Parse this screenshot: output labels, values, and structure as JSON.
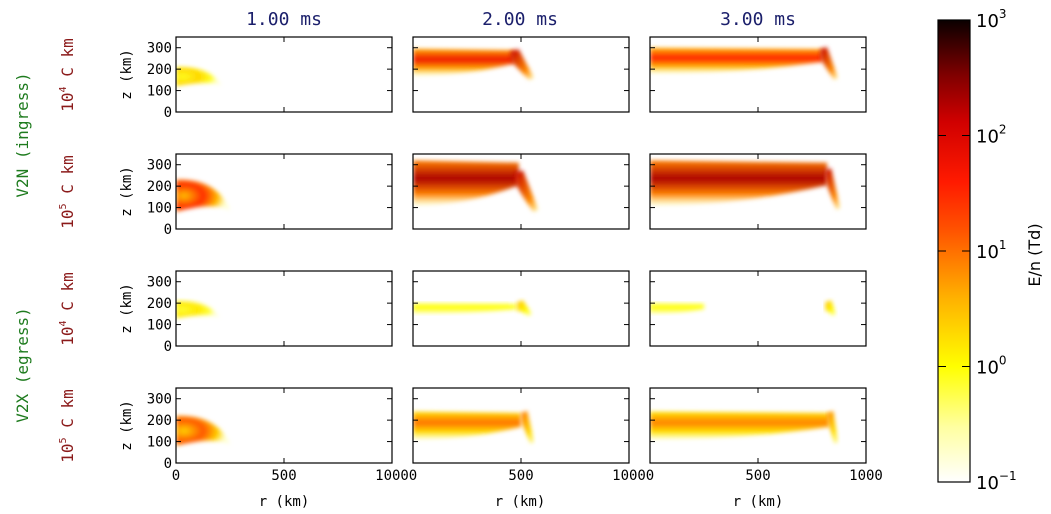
{
  "columns": [
    "1.00 ms",
    "2.00 ms",
    "3.00 ms"
  ],
  "group_labels": [
    "V2N (ingress)",
    "V2X (egress)"
  ],
  "row_labels": [
    {
      "base": "10",
      "exp": "4",
      "suffix": " C km"
    },
    {
      "base": "10",
      "exp": "5",
      "suffix": " C km"
    },
    {
      "base": "10",
      "exp": "4",
      "suffix": " C km"
    },
    {
      "base": "10",
      "exp": "5",
      "suffix": " C km"
    }
  ],
  "colors": {
    "column_title": "#1b1f6b",
    "row_label": "#8b1a1a",
    "group_label": "#1e7b1e"
  },
  "colorbar": {
    "label": "E/n (Td)",
    "scale": "log",
    "colormap": "hot_r",
    "ticks": [
      {
        "base": "10",
        "exp": "3",
        "value": 1000
      },
      {
        "base": "10",
        "exp": "2",
        "value": 100
      },
      {
        "base": "10",
        "exp": "1",
        "value": 10
      },
      {
        "base": "10",
        "exp": "0",
        "value": 1
      },
      {
        "base": "10",
        "exp": "−1",
        "value": 0.1
      }
    ]
  },
  "chart_data": {
    "type": "heatmap",
    "layout": "4 rows x 3 columns of panels",
    "xlabel": "r (km)",
    "ylabel": "z (km)",
    "xlim": [
      0,
      1000
    ],
    "ylim": [
      0,
      350
    ],
    "xticks": [
      0,
      500,
      1000
    ],
    "xtick_labels": [
      "0",
      "500",
      "1000"
    ],
    "yticks": [
      0,
      100,
      200,
      300
    ],
    "ytick_labels": [
      "0",
      "100",
      "200",
      "300"
    ],
    "value_label": "E/n (Td)",
    "value_range": [
      0.1,
      1000
    ],
    "panels": [
      {
        "row": 0,
        "col": 0,
        "regions": [
          {
            "kind": "arc",
            "r_max": 210,
            "z_center": 165,
            "half_thickness": 45,
            "peak_en": 2
          }
        ]
      },
      {
        "row": 0,
        "col": 1,
        "regions": [
          {
            "kind": "band",
            "r_start": 0,
            "r_end": 470,
            "z_low": 170,
            "z_high": 295,
            "peak_en": 60
          },
          {
            "kind": "tip",
            "r_at": 480,
            "z_at": 270,
            "r_end": 560,
            "z_end": 160,
            "peak_en": 150
          }
        ]
      },
      {
        "row": 0,
        "col": 2,
        "regions": [
          {
            "kind": "band",
            "r_start": 0,
            "r_end": 800,
            "z_low": 180,
            "z_high": 300,
            "peak_en": 40
          },
          {
            "kind": "tip",
            "r_at": 810,
            "z_at": 280,
            "r_end": 870,
            "z_end": 160,
            "peak_en": 150
          }
        ]
      },
      {
        "row": 1,
        "col": 0,
        "regions": [
          {
            "kind": "arc",
            "r_max": 250,
            "z_center": 155,
            "half_thickness": 75,
            "peak_en": 30
          }
        ]
      },
      {
        "row": 1,
        "col": 1,
        "regions": [
          {
            "kind": "band",
            "r_start": 0,
            "r_end": 490,
            "z_low": 110,
            "z_high": 320,
            "peak_en": 200
          },
          {
            "kind": "tip",
            "r_at": 500,
            "z_at": 250,
            "r_end": 580,
            "z_end": 90,
            "peak_en": 150
          }
        ]
      },
      {
        "row": 1,
        "col": 2,
        "regions": [
          {
            "kind": "band",
            "r_start": 0,
            "r_end": 820,
            "z_low": 110,
            "z_high": 320,
            "peak_en": 200
          },
          {
            "kind": "tip",
            "r_at": 830,
            "z_at": 260,
            "r_end": 880,
            "z_end": 100,
            "peak_en": 150
          }
        ]
      },
      {
        "row": 2,
        "col": 0,
        "regions": [
          {
            "kind": "arc",
            "r_max": 200,
            "z_center": 170,
            "half_thickness": 40,
            "peak_en": 1.5
          }
        ]
      },
      {
        "row": 2,
        "col": 1,
        "regions": [
          {
            "kind": "band",
            "r_start": 0,
            "r_end": 480,
            "z_low": 150,
            "z_high": 200,
            "peak_en": 1
          },
          {
            "kind": "tip",
            "r_at": 500,
            "z_at": 190,
            "r_end": 550,
            "z_end": 150,
            "peak_en": 3
          }
        ]
      },
      {
        "row": 2,
        "col": 2,
        "regions": [
          {
            "kind": "band",
            "r_start": 0,
            "r_end": 250,
            "z_low": 150,
            "z_high": 200,
            "peak_en": 1
          },
          {
            "kind": "tip",
            "r_at": 830,
            "z_at": 190,
            "r_end": 860,
            "z_end": 150,
            "peak_en": 3
          }
        ]
      },
      {
        "row": 3,
        "col": 0,
        "regions": [
          {
            "kind": "arc",
            "r_max": 250,
            "z_center": 150,
            "half_thickness": 70,
            "peak_en": 15
          }
        ]
      },
      {
        "row": 3,
        "col": 1,
        "regions": [
          {
            "kind": "band",
            "r_start": 0,
            "r_end": 500,
            "z_low": 110,
            "z_high": 240,
            "peak_en": 10
          },
          {
            "kind": "tip",
            "r_at": 520,
            "z_at": 220,
            "r_end": 560,
            "z_end": 100,
            "peak_en": 10
          }
        ]
      },
      {
        "row": 3,
        "col": 2,
        "regions": [
          {
            "kind": "band",
            "r_start": 0,
            "r_end": 830,
            "z_low": 110,
            "z_high": 240,
            "peak_en": 8
          },
          {
            "kind": "tip",
            "r_at": 840,
            "z_at": 220,
            "r_end": 870,
            "z_end": 100,
            "peak_en": 8
          }
        ]
      }
    ]
  }
}
